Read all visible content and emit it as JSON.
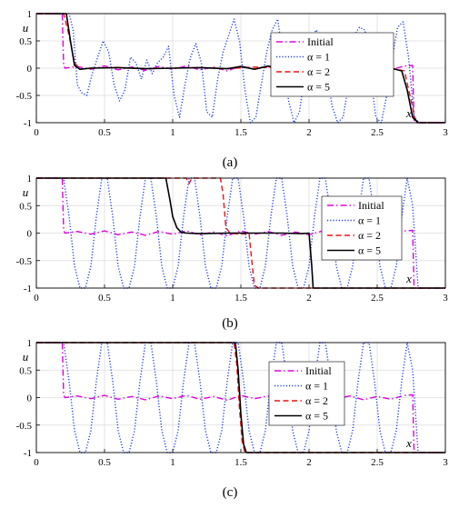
{
  "chart_data": [
    {
      "type": "line",
      "caption": "(a)",
      "xlabel": "x",
      "ylabel": "u",
      "xlim": [
        0,
        3
      ],
      "ylim": [
        -1,
        1
      ],
      "xticks": [
        "0",
        "0.5",
        "1",
        "1.5",
        "2",
        "2.5",
        "3"
      ],
      "yticks": [
        "1",
        "0.5",
        "0",
        "-0.5",
        "-1"
      ],
      "grid": true,
      "legend_position": "right",
      "legend": [
        "Initial",
        "α = 1",
        "α = 2",
        "α = 5"
      ],
      "series": [
        {
          "name": "Initial",
          "color": "#e000e0",
          "style": "dash-dot",
          "x": [
            0,
            0.19,
            0.2,
            0.21,
            0.3,
            0.4,
            0.5,
            0.6,
            0.7,
            0.8,
            0.9,
            1.0,
            1.1,
            1.2,
            1.3,
            1.4,
            1.5,
            1.6,
            1.7,
            1.8,
            1.9,
            2.0,
            2.1,
            2.2,
            2.3,
            2.4,
            2.5,
            2.6,
            2.7,
            2.76,
            2.77,
            2.78,
            3.0
          ],
          "y": [
            1,
            1,
            0.05,
            0.0,
            0.03,
            -0.02,
            0.04,
            -0.03,
            0.02,
            -0.04,
            0.03,
            -0.02,
            0.04,
            -0.03,
            0.02,
            -0.05,
            0.04,
            -0.02,
            0.03,
            -0.04,
            0.02,
            -0.03,
            0.04,
            -0.02,
            0.03,
            -0.04,
            0.02,
            -0.03,
            0.04,
            0.05,
            -0.95,
            -1,
            -1
          ]
        },
        {
          "name": "α = 1",
          "color": "#1f3cff",
          "style": "dotted",
          "x": [
            0,
            0.24,
            0.27,
            0.3,
            0.33,
            0.37,
            0.41,
            0.45,
            0.49,
            0.53,
            0.57,
            0.61,
            0.65,
            0.69,
            0.73,
            0.77,
            0.81,
            0.85,
            0.89,
            0.93,
            0.97,
            1.01,
            1.05,
            1.09,
            1.13,
            1.17,
            1.21,
            1.25,
            1.29,
            1.33,
            1.37,
            1.41,
            1.45,
            1.49,
            1.53,
            1.57,
            1.61,
            1.65,
            1.69,
            1.73,
            1.77,
            1.81,
            1.85,
            1.89,
            1.93,
            1.97,
            2.01,
            2.05,
            2.09,
            2.13,
            2.17,
            2.21,
            2.25,
            2.29,
            2.33,
            2.37,
            2.41,
            2.45,
            2.49,
            2.53,
            2.57,
            2.61,
            2.65,
            2.69,
            2.73,
            2.77,
            2.81,
            3.0
          ],
          "y": [
            1,
            1,
            0.7,
            -0.3,
            -0.45,
            -0.5,
            -0.1,
            0.2,
            0.5,
            0.3,
            -0.3,
            -0.6,
            -0.4,
            0.2,
            0.1,
            -0.2,
            0.15,
            -0.1,
            0.1,
            0.2,
            0.4,
            -0.5,
            -0.9,
            -0.3,
            0.2,
            0.45,
            0.1,
            -0.8,
            -0.9,
            -0.2,
            0.3,
            0.6,
            0.9,
            0.5,
            -0.4,
            -1.0,
            -0.9,
            -0.3,
            0.3,
            0.7,
            0.9,
            0.2,
            -0.6,
            -1.0,
            -0.8,
            -0.1,
            0.4,
            0.7,
            0.6,
            -0.1,
            -0.7,
            -1.0,
            -0.9,
            -0.3,
            0.6,
            0.75,
            0.7,
            -0.1,
            -0.9,
            -1.0,
            -0.5,
            0.2,
            0.75,
            0.85,
            0.2,
            -0.9,
            -1,
            -1
          ]
        },
        {
          "name": "α = 2",
          "color": "#ee1111",
          "style": "dashed",
          "x": [
            0,
            0.2,
            0.24,
            0.28,
            0.32,
            0.4,
            0.6,
            0.8,
            1.0,
            1.2,
            1.4,
            1.6,
            1.8,
            2.0,
            2.2,
            2.4,
            2.6,
            2.7,
            2.74,
            2.78,
            2.82,
            3.0
          ],
          "y": [
            1,
            1,
            0.6,
            0.1,
            -0.02,
            0.0,
            0.01,
            -0.01,
            0.0,
            0.01,
            -0.01,
            0.02,
            0.0,
            -0.01,
            0.01,
            -0.02,
            0.0,
            -0.05,
            -0.5,
            -0.95,
            -1,
            -1
          ]
        },
        {
          "name": "α = 5",
          "color": "#000000",
          "style": "solid",
          "x": [
            0,
            0.22,
            0.25,
            0.28,
            0.32,
            0.4,
            0.6,
            0.8,
            1.0,
            1.2,
            1.4,
            1.5,
            1.6,
            1.7,
            1.8,
            2.0,
            2.2,
            2.4,
            2.6,
            2.68,
            2.72,
            2.76,
            2.8,
            3.0
          ],
          "y": [
            1,
            1,
            0.5,
            0.05,
            -0.02,
            0.0,
            0.01,
            -0.01,
            0.0,
            0.01,
            -0.01,
            0.03,
            -0.02,
            0.04,
            -0.02,
            0.01,
            0.03,
            -0.02,
            0.0,
            -0.05,
            -0.4,
            -0.9,
            -1,
            -1
          ]
        }
      ]
    },
    {
      "type": "line",
      "caption": "(b)",
      "xlabel": "x",
      "ylabel": "u",
      "xlim": [
        0,
        3
      ],
      "ylim": [
        -1,
        1
      ],
      "xticks": [
        "0",
        "0.5",
        "1",
        "1.5",
        "2",
        "2.5",
        "3"
      ],
      "yticks": [
        "1",
        "0.5",
        "0",
        "-0.5",
        "-1"
      ],
      "grid": true,
      "legend_position": "right",
      "legend": [
        "Initial",
        "α = 1",
        "α = 2",
        "α = 5"
      ],
      "series": [
        {
          "name": "Initial",
          "color": "#e000e0",
          "style": "dash-dot",
          "x": [
            0,
            0.19,
            0.2,
            0.21,
            0.3,
            0.4,
            0.5,
            0.6,
            0.7,
            0.8,
            0.9,
            1.0,
            1.1,
            1.2,
            1.3,
            1.4,
            1.5,
            1.6,
            1.7,
            1.8,
            1.9,
            2.0,
            2.1,
            2.2,
            2.3,
            2.4,
            2.5,
            2.6,
            2.7,
            2.76,
            2.77,
            2.78,
            3.0
          ],
          "y": [
            1,
            1,
            0.05,
            0.0,
            0.03,
            -0.02,
            0.04,
            -0.03,
            0.02,
            -0.04,
            0.03,
            -0.02,
            0.04,
            -0.03,
            0.02,
            -0.05,
            0.04,
            -0.02,
            0.03,
            -0.04,
            0.02,
            -0.03,
            0.04,
            -0.02,
            0.03,
            -0.04,
            0.02,
            -0.03,
            0.04,
            0.05,
            -0.95,
            -1,
            -1
          ]
        },
        {
          "name": "α = 1",
          "color": "#1f3cff",
          "style": "dotted",
          "x": [
            0,
            0.2,
            0.24,
            0.28,
            0.32,
            0.36,
            0.4,
            0.44,
            0.48,
            0.52,
            0.56,
            0.6,
            0.64,
            0.68,
            0.72,
            0.76,
            0.8,
            0.84,
            0.88,
            0.92,
            0.96,
            1.0,
            1.04,
            1.08,
            1.12,
            1.16,
            1.2,
            1.24,
            1.28,
            1.32,
            1.36,
            1.4,
            1.44,
            1.48,
            1.52,
            1.56,
            1.6,
            1.64,
            1.68,
            1.72,
            1.76,
            1.8,
            1.84,
            1.88,
            1.92,
            1.96,
            2.0,
            2.04,
            2.08,
            2.12,
            2.16,
            2.2,
            2.24,
            2.28,
            2.32,
            2.36,
            2.4,
            2.44,
            2.48,
            2.52,
            2.56,
            2.6,
            2.64,
            2.68,
            2.72,
            2.76,
            2.8,
            3.0
          ],
          "y": [
            1,
            1,
            0.3,
            -0.6,
            -1,
            -1,
            -0.6,
            0.3,
            1,
            1,
            0.3,
            -0.6,
            -1,
            -1,
            -0.6,
            0.3,
            1,
            1,
            0.3,
            -0.6,
            -1,
            -1,
            -0.6,
            0.3,
            1,
            1,
            0.3,
            -0.6,
            -1,
            -1,
            -0.6,
            0.3,
            1,
            1,
            0.3,
            -0.6,
            -1,
            -1,
            -0.6,
            0.3,
            1,
            1,
            0.3,
            -0.6,
            -1,
            -1,
            -0.6,
            0.3,
            1,
            1,
            0.3,
            -0.6,
            -1,
            -1,
            -0.6,
            0.3,
            1,
            1,
            0.3,
            -0.6,
            -1,
            -1,
            -0.6,
            0.3,
            1,
            0.5,
            -1,
            -1
          ]
        },
        {
          "name": "α = 2",
          "color": "#ee1111",
          "style": "dashed",
          "x": [
            0,
            1.1,
            1.12,
            1.14,
            1.16,
            1.2,
            1.35,
            1.37,
            1.39,
            1.42,
            1.5,
            1.56,
            1.58,
            1.6,
            1.63,
            1.7,
            3.0
          ],
          "y": [
            1,
            1,
            0.9,
            1,
            1,
            1,
            1,
            0.7,
            0.1,
            0.0,
            -0.02,
            0.0,
            -0.5,
            -0.95,
            -1,
            -1,
            -1
          ]
        },
        {
          "name": "α = 5",
          "color": "#000000",
          "style": "solid",
          "x": [
            0,
            0.95,
            0.98,
            1.0,
            1.03,
            1.06,
            1.1,
            1.2,
            1.4,
            1.6,
            1.8,
            1.95,
            2.0,
            2.02,
            2.03,
            2.05,
            3.0
          ],
          "y": [
            1,
            1,
            0.6,
            0.3,
            0.1,
            0.02,
            0.0,
            -0.01,
            0.0,
            0.0,
            0.0,
            -0.01,
            0.0,
            -0.6,
            -1,
            -1,
            -1
          ]
        }
      ]
    },
    {
      "type": "line",
      "caption": "(c)",
      "xlabel": "x",
      "ylabel": "u",
      "xlim": [
        0,
        3
      ],
      "ylim": [
        -1,
        1
      ],
      "xticks": [
        "0",
        "0.5",
        "1",
        "1.5",
        "2",
        "2.5",
        "3"
      ],
      "yticks": [
        "1",
        "0.5",
        "0",
        "-0.5",
        "-1"
      ],
      "grid": true,
      "legend_position": "right",
      "legend": [
        "Initial",
        "α = 1",
        "α = 2",
        "α = 5"
      ],
      "series": [
        {
          "name": "Initial",
          "color": "#e000e0",
          "style": "dash-dot",
          "x": [
            0,
            0.19,
            0.2,
            0.21,
            0.3,
            0.4,
            0.5,
            0.6,
            0.7,
            0.8,
            0.9,
            1.0,
            1.1,
            1.2,
            1.3,
            1.4,
            1.5,
            1.6,
            1.7,
            1.8,
            1.9,
            2.0,
            2.1,
            2.2,
            2.3,
            2.4,
            2.5,
            2.6,
            2.7,
            2.76,
            2.77,
            2.78,
            3.0
          ],
          "y": [
            1,
            1,
            0.05,
            0.0,
            0.03,
            -0.02,
            0.04,
            -0.03,
            0.02,
            -0.04,
            0.03,
            -0.02,
            0.04,
            -0.03,
            0.02,
            -0.05,
            0.04,
            -0.02,
            0.03,
            -0.04,
            0.02,
            -0.03,
            0.04,
            -0.02,
            0.03,
            -0.04,
            0.02,
            -0.03,
            0.04,
            0.05,
            -0.95,
            -1,
            -1
          ]
        },
        {
          "name": "α = 1",
          "color": "#1f3cff",
          "style": "dotted",
          "x": [
            0,
            0.2,
            0.24,
            0.28,
            0.32,
            0.36,
            0.4,
            0.44,
            0.48,
            0.52,
            0.56,
            0.6,
            0.64,
            0.68,
            0.72,
            0.76,
            0.8,
            0.84,
            0.88,
            0.92,
            0.96,
            1.0,
            1.04,
            1.08,
            1.12,
            1.16,
            1.2,
            1.24,
            1.28,
            1.32,
            1.36,
            1.4,
            1.44,
            1.48,
            1.52,
            1.56,
            1.6,
            1.64,
            1.68,
            1.72,
            1.76,
            1.8,
            1.84,
            1.88,
            1.92,
            1.96,
            2.0,
            2.04,
            2.08,
            2.12,
            2.16,
            2.2,
            2.24,
            2.28,
            2.32,
            2.36,
            2.4,
            2.44,
            2.48,
            2.52,
            2.56,
            2.6,
            2.64,
            2.68,
            2.72,
            2.76,
            2.8,
            3.0
          ],
          "y": [
            1,
            1,
            0.3,
            -0.6,
            -1,
            -1,
            -0.6,
            0.3,
            1,
            1,
            0.3,
            -0.6,
            -1,
            -1,
            -0.6,
            0.3,
            1,
            1,
            0.3,
            -0.6,
            -1,
            -1,
            -0.6,
            0.3,
            1,
            1,
            0.3,
            -0.6,
            -1,
            -1,
            -0.6,
            0.3,
            1,
            1,
            0.3,
            -0.6,
            -1,
            -1,
            -0.6,
            0.3,
            1,
            1,
            0.3,
            -0.6,
            -1,
            -1,
            -0.6,
            0.3,
            1,
            1,
            0.3,
            -0.6,
            -1,
            -1,
            -0.6,
            0.3,
            1,
            1,
            0.3,
            -0.6,
            -1,
            -1,
            -0.6,
            0.3,
            1,
            0.5,
            -1,
            -1
          ]
        },
        {
          "name": "α = 2",
          "color": "#ee1111",
          "style": "dashed",
          "x": [
            0,
            1.45,
            1.47,
            1.49,
            1.51,
            1.53,
            1.6,
            3.0
          ],
          "y": [
            1,
            1,
            0.6,
            -0.2,
            -0.8,
            -1,
            -1,
            -1
          ]
        },
        {
          "name": "α = 5",
          "color": "#000000",
          "style": "solid",
          "x": [
            0,
            1.46,
            1.48,
            1.5,
            1.52,
            1.54,
            1.6,
            3.0
          ],
          "y": [
            1,
            1,
            0.5,
            -0.3,
            -0.85,
            -1,
            -1,
            -1
          ]
        }
      ]
    }
  ]
}
